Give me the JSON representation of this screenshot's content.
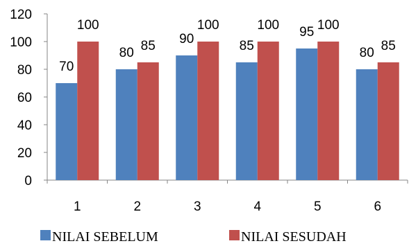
{
  "chart_data": {
    "type": "bar",
    "categories": [
      "1",
      "2",
      "3",
      "4",
      "5",
      "6"
    ],
    "series": [
      {
        "name": "NILAI SEBELUM",
        "values": [
          70,
          80,
          90,
          85,
          95,
          80
        ],
        "color": "#4F81BD"
      },
      {
        "name": "NILAI SESUDAH",
        "values": [
          100,
          85,
          100,
          100,
          100,
          85
        ],
        "color": "#C0504D"
      }
    ],
    "ylim": [
      0,
      120
    ],
    "yticks": [
      0,
      20,
      40,
      60,
      80,
      100,
      120
    ],
    "grid": false,
    "legend": "bottom",
    "data_labels": true
  }
}
